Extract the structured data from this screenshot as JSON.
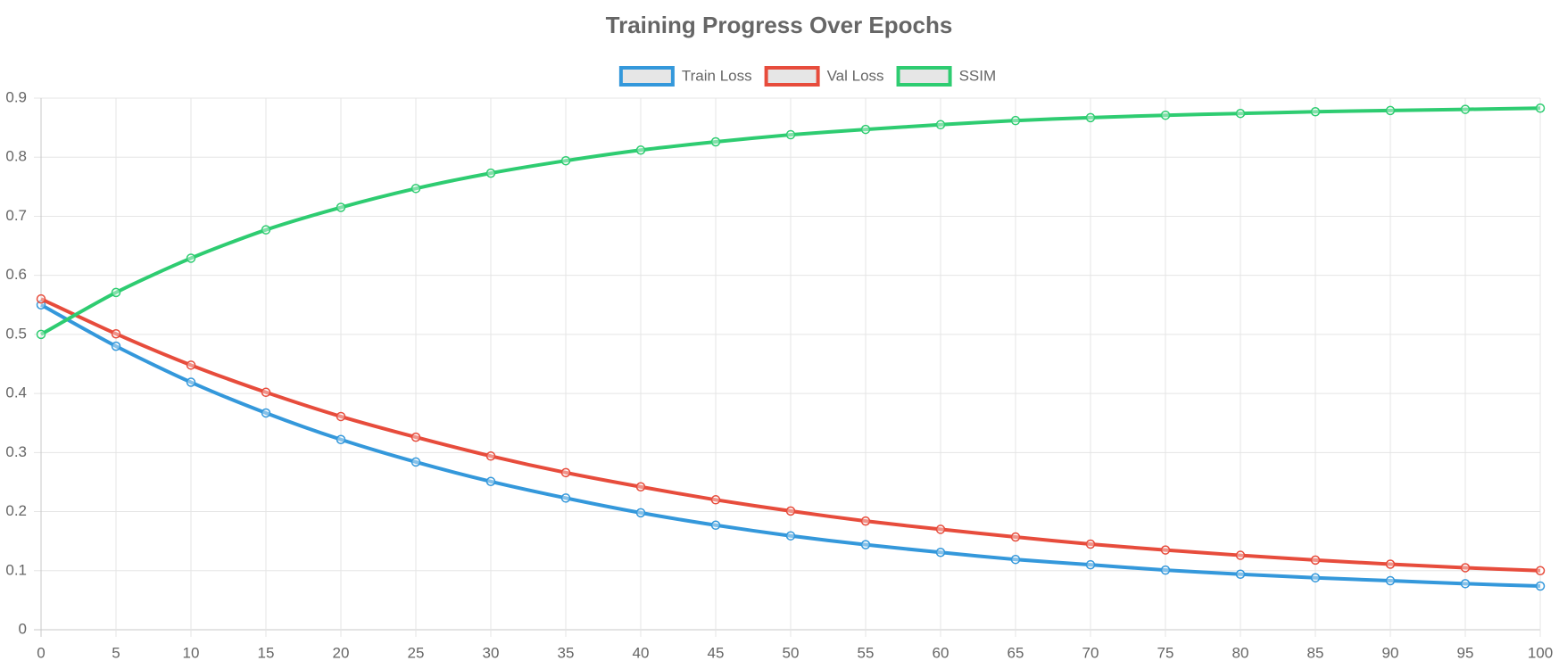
{
  "chart_data": {
    "type": "line",
    "title": "Training Progress Over Epochs",
    "x": [
      0,
      5,
      10,
      15,
      20,
      25,
      30,
      35,
      40,
      45,
      50,
      55,
      60,
      65,
      70,
      75,
      80,
      85,
      90,
      95,
      100
    ],
    "xlim": [
      0,
      100
    ],
    "xticks": [
      0,
      5,
      10,
      15,
      20,
      25,
      30,
      35,
      40,
      45,
      50,
      55,
      60,
      65,
      70,
      75,
      80,
      85,
      90,
      95,
      100
    ],
    "ylim": [
      0,
      0.9
    ],
    "yticks": [
      0,
      0.1,
      0.2,
      0.3,
      0.4,
      0.5,
      0.6,
      0.7,
      0.8,
      0.9
    ],
    "grid": true,
    "legend": "top",
    "series": [
      {
        "name": "Train Loss",
        "color": "#3498db",
        "values": [
          0.55,
          0.48,
          0.419,
          0.367,
          0.322,
          0.284,
          0.251,
          0.223,
          0.198,
          0.177,
          0.159,
          0.144,
          0.131,
          0.119,
          0.11,
          0.101,
          0.094,
          0.088,
          0.083,
          0.078,
          0.074
        ]
      },
      {
        "name": "Val Loss",
        "color": "#e74c3c",
        "values": [
          0.56,
          0.501,
          0.448,
          0.402,
          0.361,
          0.326,
          0.294,
          0.266,
          0.242,
          0.22,
          0.201,
          0.184,
          0.17,
          0.157,
          0.145,
          0.135,
          0.126,
          0.118,
          0.111,
          0.105,
          0.1
        ]
      },
      {
        "name": "SSIM",
        "color": "#2ecc71",
        "values": [
          0.5,
          0.571,
          0.629,
          0.677,
          0.715,
          0.747,
          0.773,
          0.794,
          0.812,
          0.826,
          0.838,
          0.847,
          0.855,
          0.862,
          0.867,
          0.871,
          0.874,
          0.877,
          0.879,
          0.881,
          0.883
        ]
      }
    ]
  }
}
